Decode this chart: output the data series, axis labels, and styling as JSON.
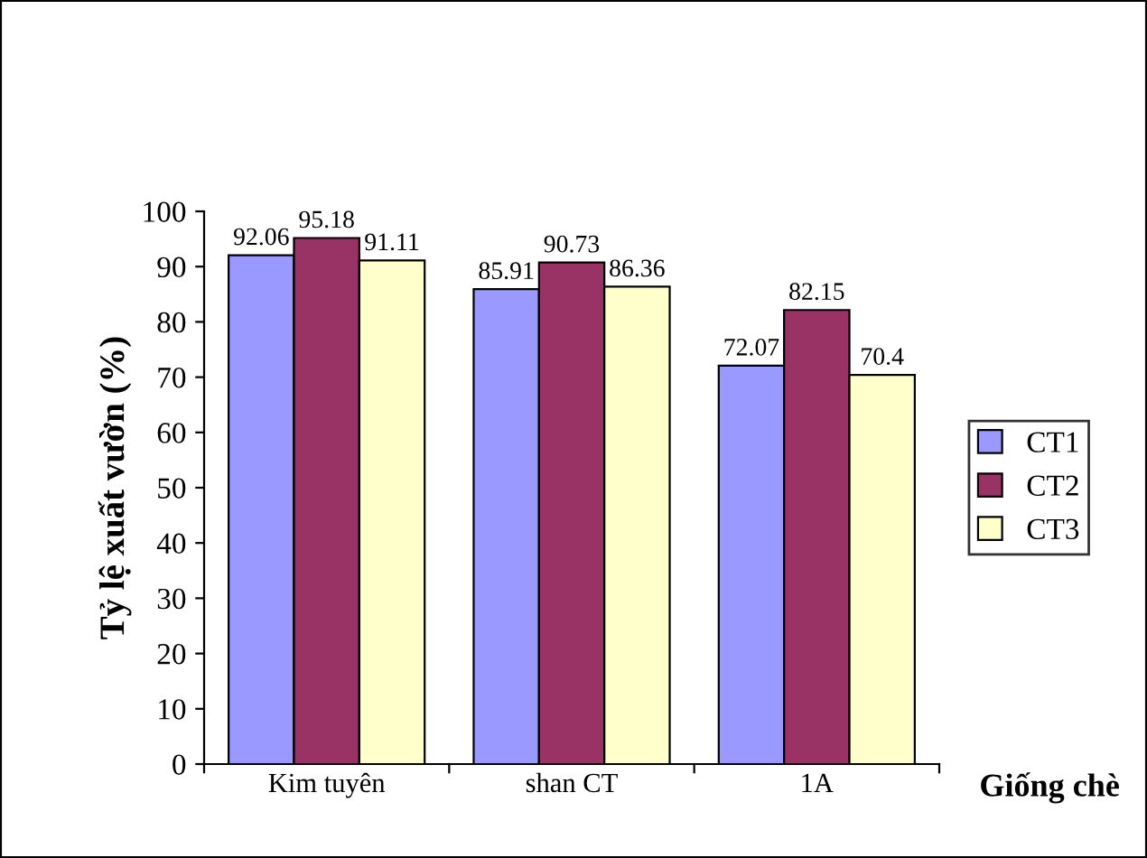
{
  "chart_data": {
    "type": "bar",
    "xlabel": "Giống chè",
    "ylabel": "Tỷ lệ xuất vườn (%)",
    "categories": [
      "Kim tuyên",
      "shan CT",
      "1A"
    ],
    "series": [
      {
        "name": "CT1",
        "color": "#9999ff",
        "values": [
          92.06,
          85.91,
          72.07
        ]
      },
      {
        "name": "CT2",
        "color": "#993366",
        "values": [
          95.18,
          90.73,
          82.15
        ]
      },
      {
        "name": "CT3",
        "color": "#ffffcc",
        "values": [
          91.11,
          86.36,
          70.4
        ]
      }
    ],
    "ylim": [
      0,
      100
    ],
    "yticks": [
      0,
      10,
      20,
      30,
      40,
      50,
      60,
      70,
      80,
      90,
      100
    ],
    "data_labels": true,
    "grid": false,
    "legend": "right"
  }
}
